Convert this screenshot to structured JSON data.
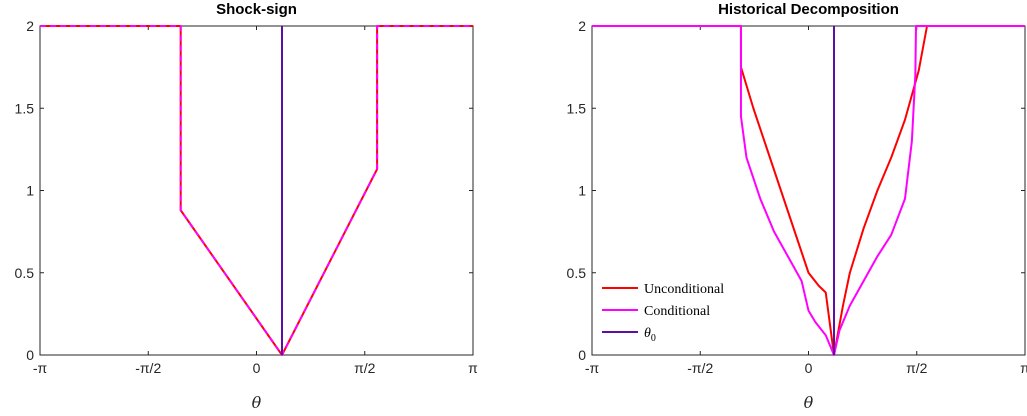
{
  "chart_data": [
    {
      "type": "line",
      "title": "Shock-sign",
      "xlabel": "θ",
      "ylabel": "",
      "xlim": [
        -3.14159,
        3.14159
      ],
      "ylim": [
        0,
        2
      ],
      "xticks": [
        -3.14159,
        -1.5708,
        0,
        1.5708,
        3.14159
      ],
      "xtick_labels": [
        "-π",
        "-π/2",
        "0",
        "π/2",
        "π"
      ],
      "yticks": [
        0,
        0.5,
        1,
        1.5,
        2
      ],
      "ytick_labels": [
        "0",
        "0.5",
        "1",
        "1.5",
        "2"
      ],
      "grid": false,
      "series": [
        {
          "color": "#ff0000",
          "dash": false,
          "x": [
            -3.14159,
            -1.1,
            -1.1,
            0.37,
            1.75,
            1.75,
            3.14159
          ],
          "y": [
            2,
            2,
            0.88,
            0,
            1.13,
            2,
            2
          ]
        },
        {
          "color": "#ff00ff",
          "dash": true,
          "x": [
            -3.14159,
            -1.1,
            -1.1,
            0.37,
            1.75,
            1.75,
            3.14159
          ],
          "y": [
            2,
            2,
            0.88,
            0,
            1.13,
            2,
            2
          ]
        },
        {
          "color": "#5c0fa5",
          "dash": false,
          "x": [
            0.37,
            0.37
          ],
          "y": [
            0,
            2
          ]
        }
      ]
    },
    {
      "type": "line",
      "title": "Historical Decomposition",
      "xlabel": "θ",
      "ylabel": "",
      "xlim": [
        -3.14159,
        3.14159
      ],
      "ylim": [
        0,
        2
      ],
      "xticks": [
        -3.14159,
        -1.5708,
        0,
        1.5708,
        3.14159
      ],
      "xtick_labels": [
        "-π",
        "-π/2",
        "0",
        "π/2",
        "π"
      ],
      "yticks": [
        0,
        0.5,
        1,
        1.5,
        2
      ],
      "ytick_labels": [
        "0",
        "0.5",
        "1",
        "1.5",
        "2"
      ],
      "grid": false,
      "legend_position": "bottom-left",
      "series": [
        {
          "name": "Unconditional",
          "color": "#ff0000",
          "dash": false,
          "x": [
            -3.14159,
            -0.98,
            -0.98,
            -0.8,
            -0.6,
            -0.4,
            -0.2,
            0,
            0.15,
            0.25,
            0.37,
            0.5,
            0.6,
            0.8,
            1.0,
            1.2,
            1.4,
            1.6,
            1.72,
            3.14159
          ],
          "y": [
            2,
            2,
            1.75,
            1.5,
            1.25,
            1.0,
            0.75,
            0.5,
            0.42,
            0.38,
            0,
            0.3,
            0.5,
            0.77,
            1.0,
            1.2,
            1.43,
            1.73,
            2,
            2
          ]
        },
        {
          "name": "Conditional",
          "color": "#ff00ff",
          "dash": false,
          "x": [
            -3.14159,
            -0.98,
            -0.98,
            -0.9,
            -0.7,
            -0.5,
            -0.3,
            -0.1,
            0,
            0.1,
            0.25,
            0.37,
            0.45,
            0.6,
            0.8,
            1.0,
            1.2,
            1.4,
            1.5,
            1.55,
            1.56,
            3.14159
          ],
          "y": [
            2,
            2,
            1.45,
            1.2,
            0.95,
            0.75,
            0.6,
            0.45,
            0.27,
            0.2,
            0.12,
            0,
            0.15,
            0.3,
            0.45,
            0.6,
            0.73,
            0.95,
            1.3,
            1.7,
            2,
            2
          ]
        },
        {
          "name": "θ0",
          "color": "#5c0fa5",
          "dash": false,
          "x": [
            0.37,
            0.37
          ],
          "y": [
            0,
            2
          ]
        }
      ]
    }
  ]
}
